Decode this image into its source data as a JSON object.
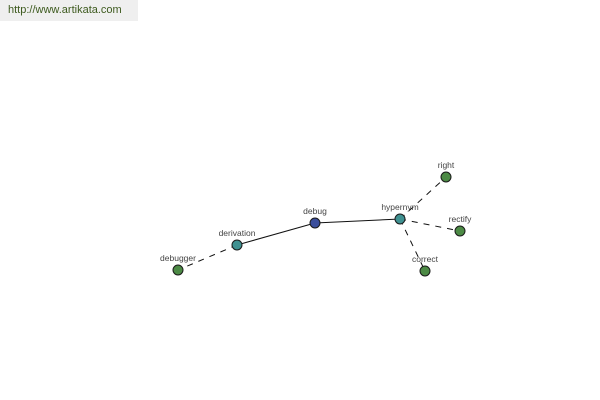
{
  "banner": {
    "url": "http://www.artikata.com"
  },
  "colors": {
    "center": "#3b4e9c",
    "relation": "#3f9191",
    "leaf": "#4c8a45"
  },
  "nodes": [
    {
      "id": "debug",
      "label": "debug",
      "kind": "center"
    },
    {
      "id": "derivation",
      "label": "derivation",
      "kind": "relation"
    },
    {
      "id": "hypernym",
      "label": "hypernym",
      "kind": "relation"
    },
    {
      "id": "debugger",
      "label": "debugger",
      "kind": "leaf"
    },
    {
      "id": "right",
      "label": "right",
      "kind": "leaf"
    },
    {
      "id": "rectify",
      "label": "rectify",
      "kind": "leaf"
    },
    {
      "id": "correct",
      "label": "correct",
      "kind": "leaf"
    }
  ],
  "edges": [
    {
      "from": "debug",
      "to": "derivation",
      "style": "solid"
    },
    {
      "from": "debug",
      "to": "hypernym",
      "style": "solid"
    },
    {
      "from": "derivation",
      "to": "debugger",
      "style": "dashed"
    },
    {
      "from": "hypernym",
      "to": "right",
      "style": "dashed"
    },
    {
      "from": "hypernym",
      "to": "rectify",
      "style": "dashed"
    },
    {
      "from": "hypernym",
      "to": "correct",
      "style": "dashed"
    }
  ]
}
